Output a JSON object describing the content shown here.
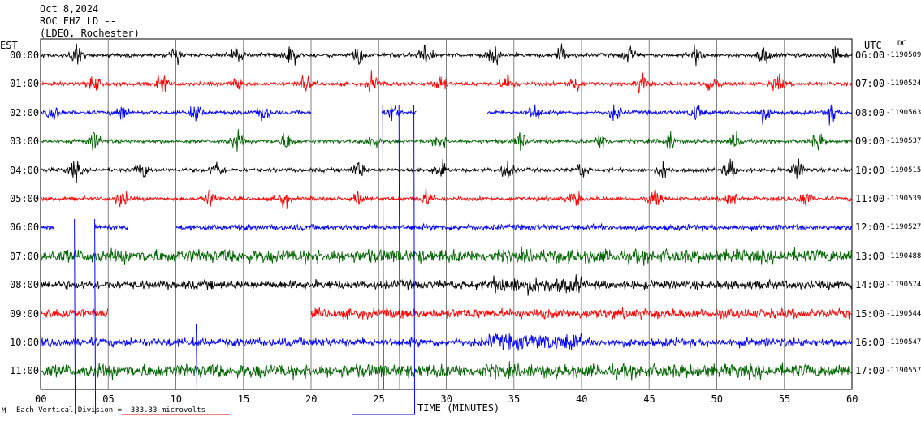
{
  "header": {
    "date": "Oct 8,2024",
    "station": "ROC EHZ LD --",
    "source": "(LDEO, Rochester)"
  },
  "timezone_left": "EST",
  "timezone_right": "UTC",
  "dc_label": "DC",
  "footer": {
    "scale_note": "Each Vertical Division =  333.33 microvolts",
    "mark": "M"
  },
  "colors": {
    "black": "#000000",
    "red": "#ff0000",
    "blue": "#0000ff",
    "green": "#006400",
    "grid": "#808080"
  },
  "chart_data": {
    "type": "line",
    "xlabel": "TIME (MINUTES)",
    "xlim": [
      0,
      60
    ],
    "x_ticks": [
      "00",
      "05",
      "10",
      "15",
      "20",
      "25",
      "30",
      "35",
      "40",
      "45",
      "50",
      "55",
      "60"
    ],
    "grid": true,
    "series": [
      {
        "est": "00:00",
        "utc": "06:00",
        "dc": "-1190509",
        "color": "black"
      },
      {
        "est": "01:00",
        "utc": "07:00",
        "dc": "-1190524",
        "color": "red"
      },
      {
        "est": "02:00",
        "utc": "08:00",
        "dc": "-1190563",
        "color": "blue"
      },
      {
        "est": "03:00",
        "utc": "09:00",
        "dc": "-1190537",
        "color": "green"
      },
      {
        "est": "04:00",
        "utc": "10:00",
        "dc": "-1190515",
        "color": "black"
      },
      {
        "est": "05:00",
        "utc": "11:00",
        "dc": "-1190539",
        "color": "red"
      },
      {
        "est": "06:00",
        "utc": "12:00",
        "dc": "-1190527",
        "color": "blue"
      },
      {
        "est": "07:00",
        "utc": "13:00",
        "dc": "-1190488",
        "color": "green"
      },
      {
        "est": "08:00",
        "utc": "14:00",
        "dc": "-1190574",
        "color": "black"
      },
      {
        "est": "09:00",
        "utc": "15:00",
        "dc": "-1190544",
        "color": "red"
      },
      {
        "est": "10:00",
        "utc": "16:00",
        "dc": "-1190547",
        "color": "blue"
      },
      {
        "est": "11:00",
        "utc": "17:00",
        "dc": "-1190557",
        "color": "green"
      }
    ]
  }
}
